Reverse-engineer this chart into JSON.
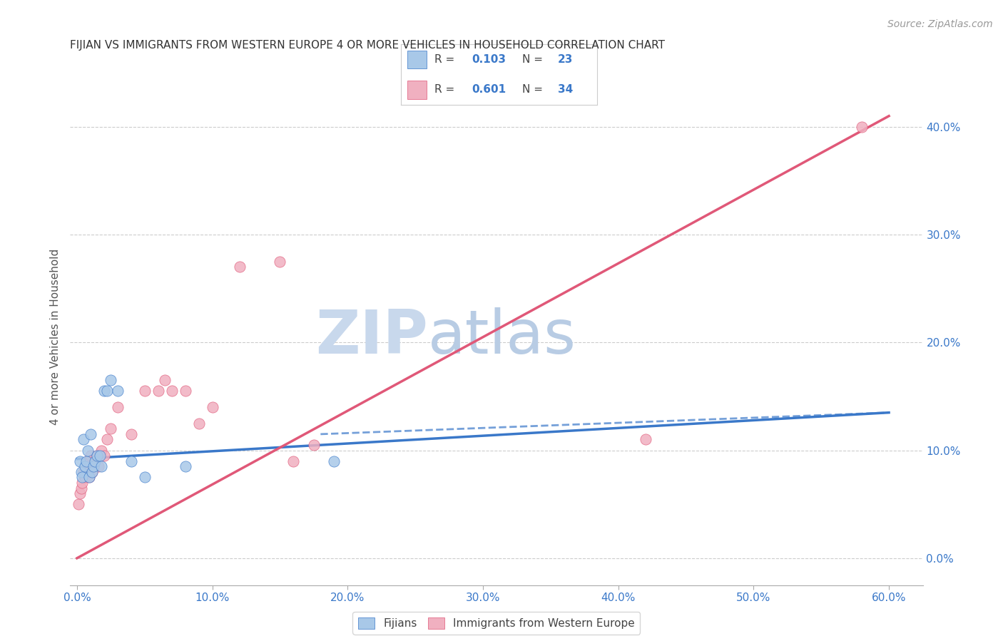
{
  "title": "FIJIAN VS IMMIGRANTS FROM WESTERN EUROPE 4 OR MORE VEHICLES IN HOUSEHOLD CORRELATION CHART",
  "source": "Source: ZipAtlas.com",
  "ylabel": "4 or more Vehicles in Household",
  "xlim": [
    -0.005,
    0.625
  ],
  "ylim": [
    -0.025,
    0.435
  ],
  "fijian_R": 0.103,
  "fijian_N": 23,
  "western_R": 0.601,
  "western_N": 34,
  "blue_color": "#a8c8e8",
  "blue_line_color": "#3a78c9",
  "pink_color": "#f0b0c0",
  "pink_line_color": "#e05878",
  "watermark_color": "#dde8f5",
  "background_color": "#ffffff",
  "fijian_x": [
    0.002,
    0.003,
    0.004,
    0.005,
    0.006,
    0.007,
    0.008,
    0.009,
    0.01,
    0.011,
    0.012,
    0.013,
    0.015,
    0.017,
    0.018,
    0.02,
    0.022,
    0.025,
    0.03,
    0.04,
    0.05,
    0.08,
    0.19
  ],
  "fijian_y": [
    0.09,
    0.08,
    0.075,
    0.11,
    0.085,
    0.09,
    0.1,
    0.075,
    0.115,
    0.08,
    0.085,
    0.09,
    0.095,
    0.095,
    0.085,
    0.155,
    0.155,
    0.165,
    0.155,
    0.09,
    0.075,
    0.085,
    0.09
  ],
  "western_x": [
    0.001,
    0.002,
    0.003,
    0.004,
    0.005,
    0.006,
    0.007,
    0.008,
    0.009,
    0.01,
    0.011,
    0.012,
    0.013,
    0.015,
    0.016,
    0.018,
    0.02,
    0.022,
    0.025,
    0.03,
    0.04,
    0.05,
    0.06,
    0.065,
    0.07,
    0.08,
    0.09,
    0.1,
    0.12,
    0.15,
    0.16,
    0.175,
    0.42,
    0.58
  ],
  "western_y": [
    0.05,
    0.06,
    0.065,
    0.07,
    0.08,
    0.075,
    0.085,
    0.09,
    0.075,
    0.095,
    0.08,
    0.085,
    0.09,
    0.095,
    0.085,
    0.1,
    0.095,
    0.11,
    0.12,
    0.14,
    0.115,
    0.155,
    0.155,
    0.165,
    0.155,
    0.155,
    0.125,
    0.14,
    0.27,
    0.275,
    0.09,
    0.105,
    0.11,
    0.4
  ],
  "fijian_line_x": [
    0.0,
    0.6
  ],
  "fijian_line_y": [
    0.092,
    0.135
  ],
  "western_line_x": [
    0.0,
    0.6
  ],
  "western_line_y": [
    0.0,
    0.41
  ]
}
